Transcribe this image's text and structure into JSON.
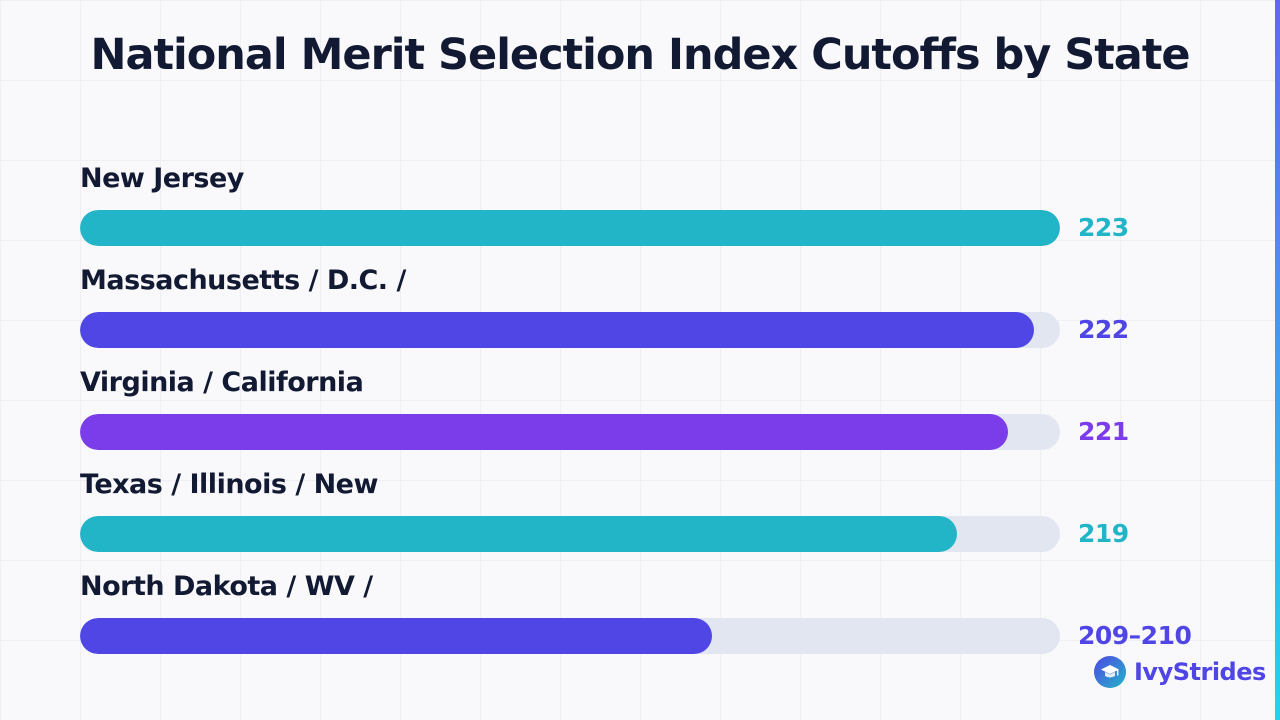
{
  "title": "National Merit Selection Index Cutoffs by State",
  "brand": {
    "name": "IvyStrides",
    "icon": "graduation-cap-icon"
  },
  "colors": {
    "teal": "#22b5c8",
    "indigo": "#4f46e5",
    "purple": "#7b3ce9",
    "track": "#e1e6f0",
    "text": "#121a33"
  },
  "chart_data": {
    "type": "bar",
    "orientation": "horizontal",
    "title": "National Merit Selection Index Cutoffs by State",
    "xlim": [
      0,
      223
    ],
    "grid": false,
    "legend": "none",
    "categories": [
      "New Jersey",
      "Massachusetts / D.C. /",
      "Virginia / California",
      "Texas / Illinois / New",
      "North Dakota / WV /"
    ],
    "values": [
      223,
      222,
      221,
      219,
      209.5
    ],
    "value_labels": [
      "223",
      "222",
      "221",
      "219",
      "209–210"
    ],
    "bar_colors": [
      "#22b5c8",
      "#4f46e5",
      "#7b3ce9",
      "#22b5c8",
      "#4f46e5"
    ]
  }
}
